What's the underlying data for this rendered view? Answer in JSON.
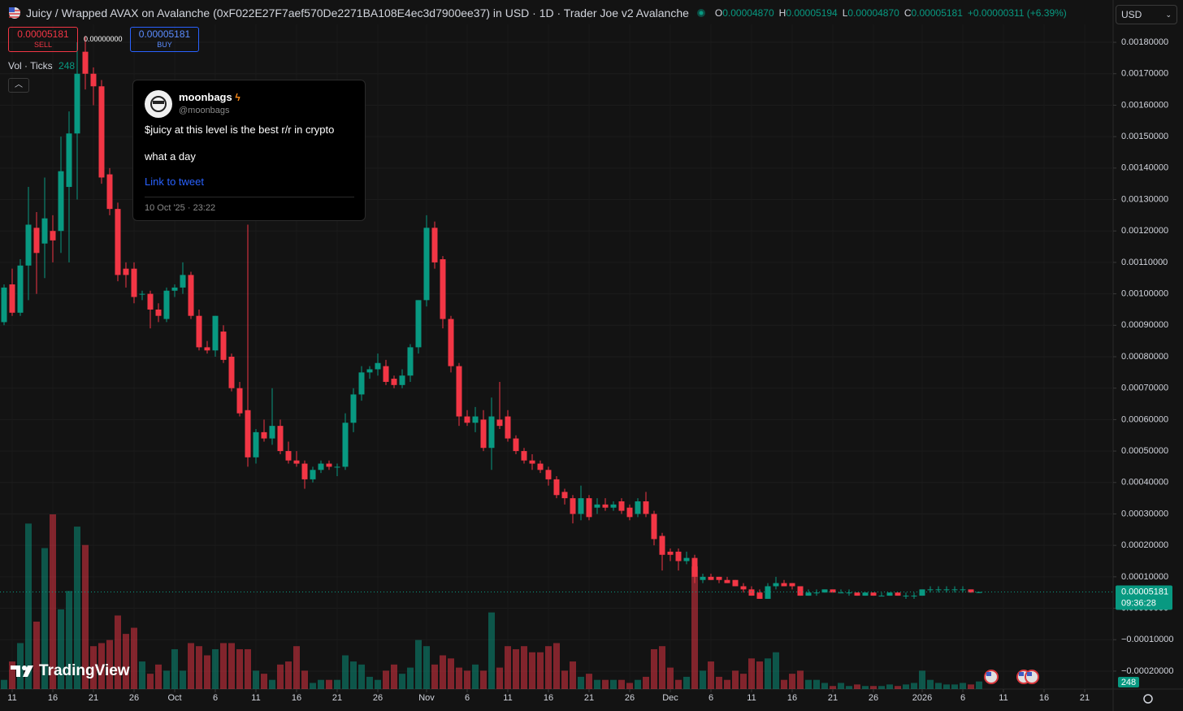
{
  "header": {
    "symbol": "Juicy / Wrapped AVAX on Avalanche (0xF022E27F7aef570De2271BA108E4ec3d7900ee37) in USD · 1D · Trader Joe v2 Avalanche",
    "ohlc": [
      {
        "key": "O",
        "value": "0.00004870"
      },
      {
        "key": "H",
        "value": "0.00005194"
      },
      {
        "key": "L",
        "value": "0.00004870"
      },
      {
        "key": "C",
        "value": "0.00005181"
      }
    ],
    "change": "+0.00000311 (+6.39%)",
    "currency": "USD"
  },
  "trade": {
    "sell_price": "0.00005181",
    "sell": "SELL",
    "spread": "0.00000000",
    "buy_price": "0.00005181",
    "buy": "BUY"
  },
  "volume_legend": {
    "label": "Vol · Ticks"
  },
  "tweet": {
    "name": "moonbags",
    "handle": "@moonbags",
    "lines": [
      "$juicy at this level is the best r/r in crypto",
      "what a day"
    ],
    "link": "Link to tweet",
    "date": "10 Oct '25 · 23:22"
  },
  "price_label": {
    "time": "09:36:28"
  },
  "branding": "TradingView",
  "chart_data": {
    "type": "candlestick",
    "up_color": "#089981",
    "down_color": "#f23645",
    "grid": true,
    "xlim": [
      -0.5,
      136.5
    ],
    "xticks": [
      {
        "value": 1,
        "label": "11"
      },
      {
        "value": 6,
        "label": "16"
      },
      {
        "value": 11,
        "label": "21"
      },
      {
        "value": 16,
        "label": "26"
      },
      {
        "value": 21,
        "label": "Oct"
      },
      {
        "value": 26,
        "label": "6"
      },
      {
        "value": 31,
        "label": "11"
      },
      {
        "value": 36,
        "label": "16"
      },
      {
        "value": 41,
        "label": "21"
      },
      {
        "value": 46,
        "label": "26"
      },
      {
        "value": 52,
        "label": "Nov"
      },
      {
        "value": 57,
        "label": "6"
      },
      {
        "value": 62,
        "label": "11"
      },
      {
        "value": 67,
        "label": "16"
      },
      {
        "value": 72,
        "label": "21"
      },
      {
        "value": 77,
        "label": "26"
      },
      {
        "value": 82,
        "label": "Dec"
      },
      {
        "value": 87,
        "label": "6"
      },
      {
        "value": 92,
        "label": "11"
      },
      {
        "value": 97,
        "label": "16"
      },
      {
        "value": 102,
        "label": "21"
      },
      {
        "value": 107,
        "label": "26"
      },
      {
        "value": 113,
        "label": "2026"
      },
      {
        "value": 118,
        "label": "6"
      },
      {
        "value": 123,
        "label": "11"
      },
      {
        "value": 128,
        "label": "16"
      },
      {
        "value": 133,
        "label": "21"
      }
    ],
    "ylim": [
      -0.000257,
      0.001857
    ],
    "yticks": [
      {
        "value": 0.0018,
        "label": "0.00180000"
      },
      {
        "value": 0.0017,
        "label": "0.00170000"
      },
      {
        "value": 0.0016,
        "label": "0.00160000"
      },
      {
        "value": 0.0015,
        "label": "0.00150000"
      },
      {
        "value": 0.0014,
        "label": "0.00140000"
      },
      {
        "value": 0.0013,
        "label": "0.00130000"
      },
      {
        "value": 0.0012,
        "label": "0.00120000"
      },
      {
        "value": 0.0011,
        "label": "0.00110000"
      },
      {
        "value": 0.001,
        "label": "0.00100000"
      },
      {
        "value": 0.0009,
        "label": "0.00090000"
      },
      {
        "value": 0.0008,
        "label": "0.00080000"
      },
      {
        "value": 0.0007,
        "label": "0.00070000"
      },
      {
        "value": 0.0006,
        "label": "0.00060000"
      },
      {
        "value": 0.0005,
        "label": "0.00050000"
      },
      {
        "value": 0.0004,
        "label": "0.00040000"
      },
      {
        "value": 0.0003,
        "label": "0.00030000"
      },
      {
        "value": 0.0002,
        "label": "0.00020000"
      },
      {
        "value": 0.0001,
        "label": "0.00010000"
      },
      {
        "value": 0,
        "label": "0.00000000"
      },
      {
        "value": -0.0001,
        "label": "−0.00010000"
      },
      {
        "value": -0.0002,
        "label": "−0.00020000"
      }
    ],
    "open": [
      0.00091,
      0.00103,
      0.00094,
      0.00109,
      0.00121,
      0.00116,
      0.0012,
      0.0012,
      0.00134,
      0.00151,
      0.00177,
      0.0017,
      0.00166,
      0.00138,
      0.00127,
      0.00108,
      0.00108,
      0.001,
      0.001,
      0.00095,
      0.00092,
      0.00101,
      0.00102,
      0.00106,
      0.00093,
      0.00083,
      0.00082,
      0.00088,
      0.0008,
      0.0007,
      0.00063,
      0.00048,
      0.00056,
      0.00054,
      0.00058,
      0.0005,
      0.00047,
      0.00046,
      0.00041,
      0.00044,
      0.00046,
      0.00045,
      0.00045,
      0.00059,
      0.00068,
      0.00075,
      0.00076,
      0.00077,
      0.00073,
      0.00071,
      0.00074,
      0.00083,
      0.00098,
      0.00121,
      0.00111,
      0.00092,
      0.00077,
      0.00061,
      0.00059,
      0.0006,
      0.00051,
      0.0006,
      0.00061,
      0.00054,
      0.0005,
      0.00047,
      0.00046,
      0.00044,
      0.00041,
      0.00037,
      0.00035,
      0.0003,
      0.00035,
      0.00032,
      0.00033,
      0.00032,
      0.00034,
      0.00032,
      0.0003,
      0.00034,
      0.0003,
      0.00023,
      0.00018,
      0.00018,
      0.00015,
      0.00016,
      9e-05,
      0.0001,
      0.0001,
      9e-05,
      9e-05,
      7e-05,
      6e-05,
      5e-05,
      3e-05,
      7e-05,
      8e-05,
      8e-05,
      7e-05,
      4e-05,
      5e-05,
      5e-05,
      6e-05,
      5e-05,
      5e-05,
      5e-05,
      4e-05,
      5e-05,
      4e-05,
      4e-05,
      5e-05,
      4e-05,
      4e-05,
      4e-05,
      6e-05,
      6e-05,
      6e-05,
      6e-05,
      6e-05,
      6e-05,
      4.87e-05
    ],
    "high": [
      0.00103,
      0.00108,
      0.00111,
      0.00134,
      0.00126,
      0.00137,
      0.00125,
      0.0015,
      0.00158,
      0.0018,
      0.00182,
      0.00172,
      0.00168,
      0.0014,
      0.00129,
      0.0011,
      0.0011,
      0.00101,
      0.00101,
      0.00097,
      0.00102,
      0.00103,
      0.0011,
      0.00107,
      0.00095,
      0.00085,
      0.00093,
      0.0009,
      0.00081,
      0.00072,
      0.00122,
      0.00057,
      0.0006,
      0.0007,
      0.0006,
      0.00053,
      0.0005,
      0.00047,
      0.00045,
      0.00047,
      0.00047,
      0.00046,
      0.00062,
      0.0007,
      0.00077,
      0.00077,
      0.00081,
      0.00079,
      0.00074,
      0.00076,
      0.00084,
      0.00098,
      0.00125,
      0.00123,
      0.00112,
      0.00093,
      0.00078,
      0.00063,
      0.00064,
      0.00063,
      0.00067,
      0.00072,
      0.00063,
      0.00055,
      0.00051,
      0.00049,
      0.00047,
      0.00045,
      0.00042,
      0.00038,
      0.00036,
      0.00039,
      0.00036,
      0.00035,
      0.00035,
      0.00034,
      0.00035,
      0.00033,
      0.00035,
      0.00037,
      0.00031,
      0.00024,
      0.00019,
      0.00019,
      0.00018,
      0.00017,
      0.00011,
      0.00011,
      0.0001,
      0.0001,
      9e-05,
      8e-05,
      7e-05,
      6e-05,
      8e-05,
      0.0001,
      9e-05,
      8e-05,
      7e-05,
      6e-05,
      6e-05,
      6e-05,
      6e-05,
      6e-05,
      6e-05,
      5e-05,
      5e-05,
      5e-05,
      5e-05,
      5e-05,
      5e-05,
      5e-05,
      5e-05,
      6e-05,
      7e-05,
      7e-05,
      7e-05,
      7e-05,
      7e-05,
      6e-05,
      5.194e-05
    ],
    "low": [
      0.0009,
      0.00093,
      0.00093,
      0.00098,
      0.001,
      0.00105,
      0.0011,
      0.00113,
      0.0011,
      0.0013,
      0.00165,
      0.0016,
      0.00135,
      0.00125,
      0.00104,
      0.00102,
      0.00097,
      0.00098,
      0.00089,
      0.00091,
      0.00091,
      0.00099,
      0.001,
      0.00092,
      0.00082,
      0.00081,
      0.0008,
      0.00078,
      0.00069,
      0.00061,
      0.00045,
      0.00046,
      0.00053,
      0.00052,
      0.00049,
      0.00046,
      0.00045,
      0.00038,
      0.0004,
      0.00043,
      0.00044,
      0.00042,
      0.00044,
      0.00056,
      0.00066,
      0.00073,
      0.00074,
      0.00071,
      0.0007,
      0.0007,
      0.00072,
      0.00081,
      0.00096,
      0.00108,
      0.00089,
      0.00075,
      0.00058,
      0.00058,
      0.00056,
      0.0005,
      0.00044,
      0.00057,
      0.00053,
      0.00049,
      0.00046,
      0.00044,
      0.00043,
      0.00039,
      0.00035,
      0.00033,
      0.00027,
      0.00028,
      0.00028,
      0.0003,
      0.00031,
      0.00031,
      0.0003,
      0.00028,
      0.00029,
      0.00029,
      0.0002,
      0.00012,
      0.00015,
      0.00012,
      0.00014,
      8e-05,
      8e-05,
      9e-05,
      8e-05,
      8e-05,
      7e-05,
      5e-05,
      4e-05,
      3e-05,
      3e-05,
      6e-05,
      7e-05,
      6e-05,
      4e-05,
      4e-05,
      4e-05,
      5e-05,
      5e-05,
      5e-05,
      4e-05,
      4e-05,
      4e-05,
      4e-05,
      4e-05,
      4e-05,
      4e-05,
      3e-05,
      3e-05,
      4e-05,
      5e-05,
      5e-05,
      5e-05,
      5e-05,
      5e-05,
      5e-05,
      4.87e-05
    ],
    "close": [
      0.00102,
      0.00094,
      0.00109,
      0.00122,
      0.00113,
      0.00124,
      0.00117,
      0.00139,
      0.00151,
      0.0017,
      0.0017,
      0.00166,
      0.00137,
      0.00127,
      0.00106,
      0.00106,
      0.00099,
      0.001,
      0.00095,
      0.00093,
      0.00101,
      0.00102,
      0.00106,
      0.00093,
      0.00083,
      0.00082,
      0.00093,
      0.00079,
      0.0007,
      0.00062,
      0.00048,
      0.00056,
      0.00054,
      0.00058,
      0.0005,
      0.00047,
      0.00046,
      0.00041,
      0.00044,
      0.00046,
      0.00045,
      0.00045,
      0.00059,
      0.00068,
      0.00075,
      0.00076,
      0.00078,
      0.00072,
      0.00071,
      0.00074,
      0.00083,
      0.00098,
      0.00121,
      0.0011,
      0.00092,
      0.00077,
      0.00061,
      0.00059,
      0.00061,
      0.00051,
      0.00061,
      0.00058,
      0.00054,
      0.0005,
      0.00047,
      0.00046,
      0.00044,
      0.00041,
      0.00036,
      0.00035,
      0.0003,
      0.00035,
      0.00029,
      0.00033,
      0.00032,
      0.00033,
      0.00031,
      0.00029,
      0.00034,
      0.0003,
      0.00022,
      0.00017,
      0.00017,
      0.00015,
      0.00016,
      0.0001,
      0.0001,
      9e-05,
      9e-05,
      8e-05,
      7e-05,
      6e-05,
      4e-05,
      3e-05,
      7e-05,
      8e-05,
      7e-05,
      7e-05,
      4e-05,
      5e-05,
      5e-05,
      6e-05,
      5e-05,
      5e-05,
      5e-05,
      4e-05,
      5e-05,
      4e-05,
      4e-05,
      5e-05,
      4e-05,
      4e-05,
      4e-05,
      6e-05,
      6e-05,
      6e-05,
      6e-05,
      6e-05,
      6e-05,
      5e-05,
      5.181e-05
    ],
    "volume": [
      300,
      900,
      1500,
      5400,
      2200,
      4600,
      5700,
      2600,
      3200,
      5300,
      4700,
      1400,
      1500,
      1600,
      2400,
      1800,
      2000,
      900,
      500,
      800,
      600,
      1300,
      600,
      1500,
      1400,
      1100,
      1300,
      1500,
      1500,
      1300,
      1300,
      600,
      500,
      300,
      800,
      900,
      1400,
      600,
      200,
      300,
      300,
      300,
      1100,
      900,
      800,
      400,
      300,
      600,
      800,
      500,
      700,
      1600,
      1400,
      800,
      1100,
      1000,
      700,
      600,
      800,
      600,
      2500,
      700,
      1400,
      1300,
      1400,
      1200,
      1200,
      1400,
      1500,
      600,
      900,
      400,
      500,
      300,
      300,
      300,
      300,
      200,
      300,
      400,
      1300,
      1400,
      700,
      300,
      400,
      4000,
      600,
      900,
      400,
      300,
      600,
      500,
      1000,
      900,
      1000,
      1200,
      300,
      500,
      600,
      300,
      300,
      200,
      100,
      200,
      100,
      150,
      100,
      100,
      100,
      150,
      100,
      150,
      200,
      600,
      300,
      200,
      150,
      150,
      200,
      150,
      248
    ]
  }
}
